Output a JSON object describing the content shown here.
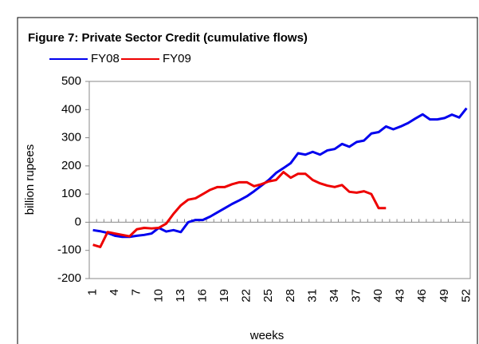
{
  "chart_data": {
    "type": "line",
    "title": "Figure 7: Private Sector Credit (cumulative flows)",
    "x_label": "weeks",
    "y_label": "billion rupees",
    "x": [
      1,
      2,
      3,
      4,
      5,
      6,
      7,
      8,
      9,
      10,
      11,
      12,
      13,
      14,
      15,
      16,
      17,
      18,
      19,
      20,
      21,
      22,
      23,
      24,
      25,
      26,
      27,
      28,
      29,
      30,
      31,
      32,
      33,
      34,
      35,
      36,
      37,
      38,
      39,
      40,
      41,
      42,
      43,
      44,
      45,
      46,
      47,
      48,
      49,
      50,
      51,
      52
    ],
    "xlim": [
      0.5,
      52.5
    ],
    "xticks": [
      1,
      4,
      7,
      10,
      13,
      16,
      19,
      22,
      25,
      28,
      31,
      34,
      37,
      40,
      43,
      46,
      49,
      52
    ],
    "ylim": [
      -200,
      500
    ],
    "yticks": [
      -200,
      -100,
      0,
      100,
      200,
      300,
      400,
      500
    ],
    "grid": false,
    "series": [
      {
        "name": "FY08",
        "color": "#0000ee",
        "values": [
          -28,
          -32,
          -38,
          -48,
          -52,
          -52,
          -48,
          -45,
          -40,
          -20,
          -33,
          -28,
          -35,
          0,
          8,
          8,
          20,
          35,
          50,
          65,
          78,
          92,
          110,
          130,
          150,
          175,
          192,
          210,
          245,
          240,
          250,
          240,
          255,
          260,
          278,
          268,
          285,
          290,
          315,
          320,
          340,
          330,
          340,
          352,
          368,
          383,
          365,
          365,
          370,
          382,
          372,
          405
        ]
      },
      {
        "name": "FY09",
        "color": "#ee0000",
        "values": [
          -80,
          -88,
          -35,
          -40,
          -45,
          -50,
          -25,
          -20,
          -22,
          -20,
          -5,
          30,
          60,
          80,
          85,
          100,
          115,
          125,
          125,
          135,
          142,
          142,
          128,
          135,
          145,
          150,
          178,
          158,
          172,
          172,
          150,
          138,
          130,
          125,
          132,
          108,
          105,
          110,
          100,
          50,
          50,
          null,
          null,
          null,
          null,
          null,
          null,
          null,
          null,
          null,
          null,
          null
        ]
      }
    ]
  }
}
